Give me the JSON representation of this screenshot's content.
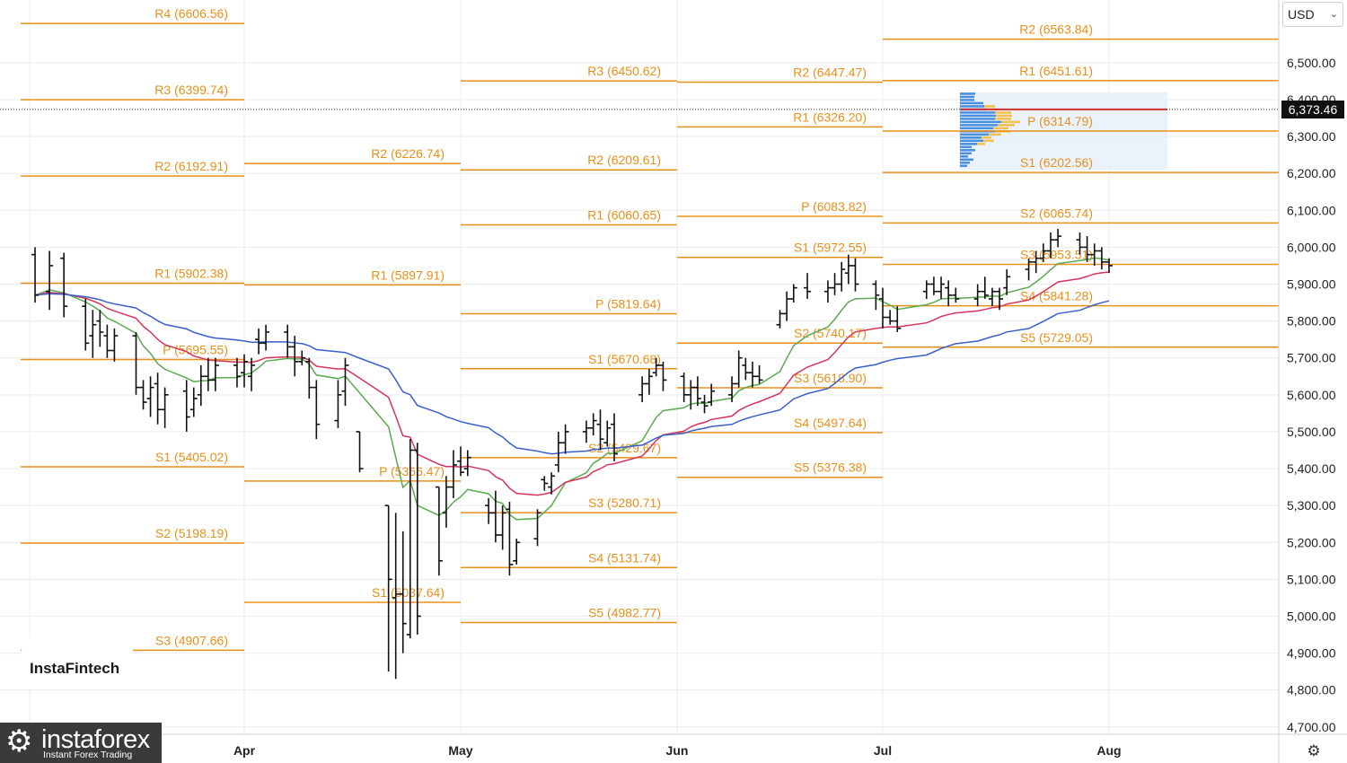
{
  "currency": {
    "label": "USD",
    "chevron_icon": "chevron-down-icon"
  },
  "last_price": "6,373.46",
  "brand": "InstaFintech",
  "watermark": {
    "name": "instaforex",
    "tagline": "Instant Forex Trading",
    "icon": "gear-logo-icon"
  },
  "settings_icon": "settings-gear-icon",
  "colors": {
    "pivot": "#e8901a",
    "ema_fast": "#5aaa4f",
    "ema_mid": "#d6345a",
    "ema_slow": "#3a5fcb",
    "price_line": "#d32f2f",
    "bars": "#111111",
    "grid": "#ececec"
  },
  "chart_data": {
    "type": "line",
    "y_axis": {
      "range": [
        4680,
        6670
      ],
      "ticks": [
        4700,
        4800,
        4900,
        5000,
        5100,
        5200,
        5300,
        5400,
        5500,
        5600,
        5700,
        5800,
        5900,
        6000,
        6100,
        6200,
        6300,
        6400,
        6500
      ],
      "tick_labels": [
        "4,700.00",
        "4,800.00",
        "4,900.00",
        "5,000.00",
        "5,100.00",
        "5,200.00",
        "5,300.00",
        "5,400.00",
        "5,500.00",
        "5,600.00",
        "5,700.00",
        "5,800.00",
        "5,900.00",
        "6,000.00",
        "6,100.00",
        "6,200.00",
        "6,300.00",
        "6,400.00",
        "6,500.00"
      ]
    },
    "x_axis": {
      "labels": [
        "Apr",
        "May",
        "Jun",
        "Jul",
        "Aug"
      ],
      "range": [
        "2025-03-01",
        "2025-08-31"
      ]
    },
    "grid": true,
    "last_value": 6373.46,
    "pivot_periods": [
      {
        "start": "2025-03-01",
        "end": "2025-04-01",
        "levels": [
          {
            "label": "R4 (6606.56)",
            "value": 6606.56
          },
          {
            "label": "R3 (6399.74)",
            "value": 6399.74
          },
          {
            "label": "R2 (6192.91)",
            "value": 6192.91
          },
          {
            "label": "R1 (5902.38)",
            "value": 5902.38
          },
          {
            "label": "P (5695.55)",
            "value": 5695.55
          },
          {
            "label": "S1 (5405.02)",
            "value": 5405.02
          },
          {
            "label": "S2 (5198.19)",
            "value": 5198.19
          },
          {
            "label": "S3 (4907.66)",
            "value": 4907.66
          }
        ]
      },
      {
        "start": "2025-04-01",
        "end": "2025-05-01",
        "levels": [
          {
            "label": "R2 (6226.74)",
            "value": 6226.74
          },
          {
            "label": "R1 (5897.91)",
            "value": 5897.91
          },
          {
            "label": "P (5366.47)",
            "value": 5366.47
          },
          {
            "label": "S1 (5037.64)",
            "value": 5037.64
          }
        ]
      },
      {
        "start": "2025-05-01",
        "end": "2025-06-01",
        "levels": [
          {
            "label": "R3 (6450.62)",
            "value": 6450.62
          },
          {
            "label": "R2 (6209.61)",
            "value": 6209.61
          },
          {
            "label": "R1 (6060.65)",
            "value": 6060.65
          },
          {
            "label": "P (5819.64)",
            "value": 5819.64
          },
          {
            "label": "S1 (5670.68)",
            "value": 5670.68
          },
          {
            "label": "S2 (5429.67)",
            "value": 5429.67
          },
          {
            "label": "S3 (5280.71)",
            "value": 5280.71
          },
          {
            "label": "S4 (5131.74)",
            "value": 5131.74
          },
          {
            "label": "S5 (4982.77)",
            "value": 4982.77
          }
        ]
      },
      {
        "start": "2025-06-01",
        "end": "2025-07-01",
        "levels": [
          {
            "label": "R2 (6447.47)",
            "value": 6447.47
          },
          {
            "label": "R1 (6326.20)",
            "value": 6326.2
          },
          {
            "label": "P (6083.82)",
            "value": 6083.82
          },
          {
            "label": "S1 (5972.55)",
            "value": 5972.55
          },
          {
            "label": "S2 (5740.17)",
            "value": 5740.17
          },
          {
            "label": "S3 (5618.90)",
            "value": 5618.9
          },
          {
            "label": "S4 (5497.64)",
            "value": 5497.64
          },
          {
            "label": "S5 (5376.38)",
            "value": 5376.38
          }
        ]
      },
      {
        "start": "2025-07-01",
        "end": "2025-08-01",
        "levels": [
          {
            "label": "R2 (6563.84)",
            "value": 6563.84
          },
          {
            "label": "R1 (6451.61)",
            "value": 6451.61
          },
          {
            "label": "P (6314.79)",
            "value": 6314.79
          },
          {
            "label": "S1 (6202.56)",
            "value": 6202.56
          },
          {
            "label": "S2 (6065.74)",
            "value": 6065.74
          },
          {
            "label": "S3 (5953.51)",
            "value": 5953.51
          },
          {
            "label": "S4 (5841.28)",
            "value": 5841.28
          },
          {
            "label": "S5 (5729.05)",
            "value": 5729.05
          }
        ]
      },
      {
        "start": "2025-08-01",
        "end": "2025-08-31",
        "levels": [
          {
            "value": 6563.84
          },
          {
            "value": 6451.61
          },
          {
            "value": 6314.79
          },
          {
            "value": 6202.56
          },
          {
            "value": 6065.74
          },
          {
            "value": 5953.51
          },
          {
            "value": 5841.28
          },
          {
            "value": 5729.05
          }
        ]
      }
    ],
    "ohlc": [
      {
        "date": "2025-03-03",
        "o": 5980,
        "h": 6000,
        "l": 5850,
        "c": 5870
      },
      {
        "date": "2025-03-05",
        "o": 5880,
        "h": 5990,
        "l": 5830,
        "c": 5950
      },
      {
        "date": "2025-03-07",
        "o": 5970,
        "h": 5985,
        "l": 5810,
        "c": 5840
      },
      {
        "date": "2025-03-10",
        "o": 5840,
        "h": 5860,
        "l": 5720,
        "c": 5740
      },
      {
        "date": "2025-03-11",
        "o": 5760,
        "h": 5830,
        "l": 5700,
        "c": 5790
      },
      {
        "date": "2025-03-12",
        "o": 5800,
        "h": 5830,
        "l": 5730,
        "c": 5770
      },
      {
        "date": "2025-03-13",
        "o": 5760,
        "h": 5790,
        "l": 5700,
        "c": 5720
      },
      {
        "date": "2025-03-14",
        "o": 5720,
        "h": 5780,
        "l": 5690,
        "c": 5760
      },
      {
        "date": "2025-03-17",
        "o": 5760,
        "h": 5770,
        "l": 5600,
        "c": 5620
      },
      {
        "date": "2025-03-18",
        "o": 5620,
        "h": 5640,
        "l": 5560,
        "c": 5580
      },
      {
        "date": "2025-03-19",
        "o": 5590,
        "h": 5650,
        "l": 5540,
        "c": 5620
      },
      {
        "date": "2025-03-20",
        "o": 5630,
        "h": 5660,
        "l": 5520,
        "c": 5560
      },
      {
        "date": "2025-03-21",
        "o": 5560,
        "h": 5620,
        "l": 5510,
        "c": 5600
      },
      {
        "date": "2025-03-24",
        "o": 5610,
        "h": 5640,
        "l": 5500,
        "c": 5540
      },
      {
        "date": "2025-03-25",
        "o": 5560,
        "h": 5620,
        "l": 5540,
        "c": 5590
      },
      {
        "date": "2025-03-26",
        "o": 5600,
        "h": 5680,
        "l": 5570,
        "c": 5650
      },
      {
        "date": "2025-03-27",
        "o": 5650,
        "h": 5700,
        "l": 5610,
        "c": 5640
      },
      {
        "date": "2025-03-28",
        "o": 5640,
        "h": 5700,
        "l": 5610,
        "c": 5680
      },
      {
        "date": "2025-03-31",
        "o": 5680,
        "h": 5700,
        "l": 5620,
        "c": 5650
      },
      {
        "date": "2025-04-01",
        "o": 5660,
        "h": 5710,
        "l": 5620,
        "c": 5690
      },
      {
        "date": "2025-04-02",
        "o": 5650,
        "h": 5700,
        "l": 5610,
        "c": 5680
      },
      {
        "date": "2025-04-03",
        "o": 5750,
        "h": 5780,
        "l": 5710,
        "c": 5740
      },
      {
        "date": "2025-04-04",
        "o": 5740,
        "h": 5790,
        "l": 5720,
        "c": 5770
      },
      {
        "date": "2025-04-07",
        "o": 5770,
        "h": 5790,
        "l": 5700,
        "c": 5730
      },
      {
        "date": "2025-04-08",
        "o": 5730,
        "h": 5760,
        "l": 5650,
        "c": 5690
      },
      {
        "date": "2025-04-09",
        "o": 5690,
        "h": 5720,
        "l": 5680,
        "c": 5700
      },
      {
        "date": "2025-04-10",
        "o": 5690,
        "h": 5700,
        "l": 5590,
        "c": 5620
      },
      {
        "date": "2025-04-11",
        "o": 5620,
        "h": 5640,
        "l": 5480,
        "c": 5520
      },
      {
        "date": "2025-04-14",
        "o": 5530,
        "h": 5640,
        "l": 5510,
        "c": 5600
      },
      {
        "date": "2025-04-15",
        "o": 5610,
        "h": 5700,
        "l": 5570,
        "c": 5680
      },
      {
        "date": "2025-04-17",
        "o": 5500,
        "h": 5500,
        "l": 5390,
        "c": 5400
      },
      {
        "date": "2025-04-21",
        "o": 5300,
        "h": 5300,
        "l": 4850,
        "c": 5100
      },
      {
        "date": "2025-04-22",
        "o": 5050,
        "h": 5280,
        "l": 4830,
        "c": 5060
      },
      {
        "date": "2025-04-23",
        "o": 5060,
        "h": 5230,
        "l": 4900,
        "c": 4980
      },
      {
        "date": "2025-04-24",
        "o": 4950,
        "h": 5480,
        "l": 4940,
        "c": 5450
      },
      {
        "date": "2025-04-25",
        "o": 5450,
        "h": 5470,
        "l": 4950,
        "c": 5000
      },
      {
        "date": "2025-04-28",
        "o": 5350,
        "h": 5350,
        "l": 5110,
        "c": 5150
      },
      {
        "date": "2025-04-29",
        "o": 5280,
        "h": 5380,
        "l": 5240,
        "c": 5350
      },
      {
        "date": "2025-04-30",
        "o": 5350,
        "h": 5450,
        "l": 5320,
        "c": 5410
      },
      {
        "date": "2025-05-01",
        "o": 5420,
        "h": 5460,
        "l": 5380,
        "c": 5390
      },
      {
        "date": "2025-05-02",
        "o": 5400,
        "h": 5450,
        "l": 5380,
        "c": 5430
      },
      {
        "date": "2025-05-05",
        "o": 5300,
        "h": 5320,
        "l": 5250,
        "c": 5280
      },
      {
        "date": "2025-05-06",
        "o": 5280,
        "h": 5340,
        "l": 5200,
        "c": 5220
      },
      {
        "date": "2025-05-07",
        "o": 5220,
        "h": 5300,
        "l": 5180,
        "c": 5280
      },
      {
        "date": "2025-05-08",
        "o": 5290,
        "h": 5310,
        "l": 5110,
        "c": 5140
      },
      {
        "date": "2025-05-09",
        "o": 5150,
        "h": 5210,
        "l": 5140,
        "c": 5200
      },
      {
        "date": "2025-05-12",
        "o": 5210,
        "h": 5290,
        "l": 5190,
        "c": 5280
      },
      {
        "date": "2025-05-13",
        "o": 5370,
        "h": 5380,
        "l": 5340,
        "c": 5360
      },
      {
        "date": "2025-05-14",
        "o": 5350,
        "h": 5390,
        "l": 5330,
        "c": 5380
      },
      {
        "date": "2025-05-15",
        "o": 5410,
        "h": 5500,
        "l": 5390,
        "c": 5470
      },
      {
        "date": "2025-05-16",
        "o": 5470,
        "h": 5520,
        "l": 5440,
        "c": 5500
      },
      {
        "date": "2025-05-19",
        "o": 5500,
        "h": 5530,
        "l": 5470,
        "c": 5510
      },
      {
        "date": "2025-05-20",
        "o": 5510,
        "h": 5550,
        "l": 5490,
        "c": 5530
      },
      {
        "date": "2025-05-21",
        "o": 5520,
        "h": 5560,
        "l": 5450,
        "c": 5480
      },
      {
        "date": "2025-05-22",
        "o": 5470,
        "h": 5530,
        "l": 5460,
        "c": 5510
      },
      {
        "date": "2025-05-23",
        "o": 5520,
        "h": 5550,
        "l": 5420,
        "c": 5440
      },
      {
        "date": "2025-05-27",
        "o": 5600,
        "h": 5650,
        "l": 5580,
        "c": 5630
      },
      {
        "date": "2025-05-28",
        "o": 5630,
        "h": 5670,
        "l": 5600,
        "c": 5650
      },
      {
        "date": "2025-05-29",
        "o": 5660,
        "h": 5700,
        "l": 5650,
        "c": 5680
      },
      {
        "date": "2025-05-30",
        "o": 5680,
        "h": 5690,
        "l": 5610,
        "c": 5640
      },
      {
        "date": "2025-06-02",
        "o": 5650,
        "h": 5660,
        "l": 5580,
        "c": 5600
      },
      {
        "date": "2025-06-03",
        "o": 5600,
        "h": 5640,
        "l": 5560,
        "c": 5620
      },
      {
        "date": "2025-06-04",
        "o": 5620,
        "h": 5650,
        "l": 5570,
        "c": 5590
      },
      {
        "date": "2025-06-05",
        "o": 5580,
        "h": 5600,
        "l": 5550,
        "c": 5570
      },
      {
        "date": "2025-06-06",
        "o": 5580,
        "h": 5630,
        "l": 5570,
        "c": 5610
      },
      {
        "date": "2025-06-09",
        "o": 5600,
        "h": 5650,
        "l": 5580,
        "c": 5630
      },
      {
        "date": "2025-06-10",
        "o": 5630,
        "h": 5720,
        "l": 5620,
        "c": 5700
      },
      {
        "date": "2025-06-11",
        "o": 5680,
        "h": 5700,
        "l": 5640,
        "c": 5660
      },
      {
        "date": "2025-06-12",
        "o": 5660,
        "h": 5690,
        "l": 5620,
        "c": 5650
      },
      {
        "date": "2025-06-13",
        "o": 5650,
        "h": 5680,
        "l": 5630,
        "c": 5640
      },
      {
        "date": "2025-06-16",
        "o": 5790,
        "h": 5830,
        "l": 5780,
        "c": 5820
      },
      {
        "date": "2025-06-17",
        "o": 5820,
        "h": 5880,
        "l": 5800,
        "c": 5860
      },
      {
        "date": "2025-06-18",
        "o": 5860,
        "h": 5900,
        "l": 5850,
        "c": 5890
      },
      {
        "date": "2025-06-20",
        "o": 5890,
        "h": 5930,
        "l": 5860,
        "c": 5880
      },
      {
        "date": "2025-06-23",
        "o": 5880,
        "h": 5910,
        "l": 5850,
        "c": 5890
      },
      {
        "date": "2025-06-24",
        "o": 5890,
        "h": 5930,
        "l": 5870,
        "c": 5900
      },
      {
        "date": "2025-06-25",
        "o": 5900,
        "h": 5960,
        "l": 5880,
        "c": 5940
      },
      {
        "date": "2025-06-26",
        "o": 5930,
        "h": 5980,
        "l": 5900,
        "c": 5950
      },
      {
        "date": "2025-06-27",
        "o": 5950,
        "h": 5970,
        "l": 5880,
        "c": 5900
      },
      {
        "date": "2025-06-30",
        "o": 5900,
        "h": 5910,
        "l": 5830,
        "c": 5870
      },
      {
        "date": "2025-07-01",
        "o": 5860,
        "h": 5890,
        "l": 5780,
        "c": 5810
      },
      {
        "date": "2025-07-02",
        "o": 5810,
        "h": 5830,
        "l": 5790,
        "c": 5800
      },
      {
        "date": "2025-07-03",
        "o": 5800,
        "h": 5840,
        "l": 5770,
        "c": 5780
      },
      {
        "date": "2025-07-07",
        "o": 5880,
        "h": 5910,
        "l": 5860,
        "c": 5900
      },
      {
        "date": "2025-07-08",
        "o": 5900,
        "h": 5920,
        "l": 5870,
        "c": 5880
      },
      {
        "date": "2025-07-09",
        "o": 5880,
        "h": 5920,
        "l": 5860,
        "c": 5900
      },
      {
        "date": "2025-07-10",
        "o": 5890,
        "h": 5910,
        "l": 5840,
        "c": 5870
      },
      {
        "date": "2025-07-11",
        "o": 5870,
        "h": 5890,
        "l": 5850,
        "c": 5860
      },
      {
        "date": "2025-07-14",
        "o": 5860,
        "h": 5900,
        "l": 5840,
        "c": 5880
      },
      {
        "date": "2025-07-15",
        "o": 5880,
        "h": 5920,
        "l": 5860,
        "c": 5870
      },
      {
        "date": "2025-07-16",
        "o": 5860,
        "h": 5890,
        "l": 5840,
        "c": 5880
      },
      {
        "date": "2025-07-17",
        "o": 5880,
        "h": 5890,
        "l": 5830,
        "c": 5860
      },
      {
        "date": "2025-07-18",
        "o": 5890,
        "h": 5940,
        "l": 5870,
        "c": 5920
      },
      {
        "date": "2025-07-21",
        "o": 5940,
        "h": 5970,
        "l": 5910,
        "c": 5960
      },
      {
        "date": "2025-07-22",
        "o": 5960,
        "h": 5990,
        "l": 5930,
        "c": 5970
      },
      {
        "date": "2025-07-23",
        "o": 5970,
        "h": 6010,
        "l": 5960,
        "c": 5990
      },
      {
        "date": "2025-07-24",
        "o": 5990,
        "h": 6040,
        "l": 5970,
        "c": 6020
      },
      {
        "date": "2025-07-25",
        "o": 6020,
        "h": 6050,
        "l": 6000,
        "c": 6030
      },
      {
        "date": "2025-07-28",
        "o": 6020,
        "h": 6040,
        "l": 5980,
        "c": 6000
      },
      {
        "date": "2025-07-29",
        "o": 6000,
        "h": 6030,
        "l": 5960,
        "c": 5980
      },
      {
        "date": "2025-07-30",
        "o": 5980,
        "h": 6010,
        "l": 5950,
        "c": 5990
      },
      {
        "date": "2025-07-31",
        "o": 5990,
        "h": 6000,
        "l": 5940,
        "c": 5960
      },
      {
        "date": "2025-08-01",
        "o": 5960,
        "h": 5970,
        "l": 5930,
        "c": 5950
      }
    ]
  }
}
